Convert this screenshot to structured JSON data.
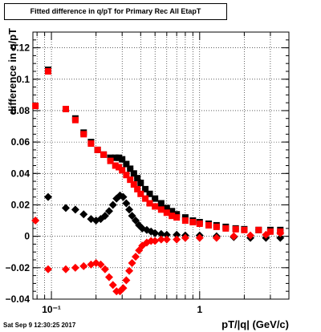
{
  "chart_data": {
    "type": "scatter",
    "title": "Fitted difference in q/pT for Primary Rec All EtapT",
    "xlabel": "pT/|q| (GeV/c)",
    "ylabel": "difference in q/pT",
    "xscale": "log",
    "xlim": [
      0.075,
      4.0
    ],
    "ylim": [
      -0.04,
      0.13
    ],
    "x_ticklabels": [
      "10⁻¹",
      "1"
    ],
    "y_ticklabels": [
      "−0.04",
      "−0.02",
      "0",
      "0.02",
      "0.04",
      "0.06",
      "0.08",
      "0.1",
      "0.12"
    ],
    "grid": true,
    "series": [
      {
        "color": "#000000",
        "marker": "square",
        "x": [
          0.095,
          0.125,
          0.145,
          0.165,
          0.185,
          0.205,
          0.225,
          0.25,
          0.27,
          0.285,
          0.3,
          0.32,
          0.34,
          0.36,
          0.38,
          0.4,
          0.43,
          0.46,
          0.5,
          0.55,
          0.6,
          0.65,
          0.7,
          0.8,
          0.9,
          1.0,
          1.15,
          1.3,
          1.5,
          1.75,
          2.0,
          2.5,
          3.0,
          3.5
        ],
        "y": [
          0.106,
          0.081,
          0.075,
          0.066,
          0.06,
          0.055,
          0.052,
          0.05,
          0.05,
          0.05,
          0.049,
          0.046,
          0.043,
          0.04,
          0.037,
          0.034,
          0.03,
          0.027,
          0.024,
          0.021,
          0.018,
          0.016,
          0.014,
          0.012,
          0.01,
          0.009,
          0.008,
          0.007,
          0.006,
          0.005,
          0.0045,
          0.004,
          0.004,
          0.004
        ]
      },
      {
        "color": "#ff0000",
        "marker": "square",
        "x": [
          0.078,
          0.095,
          0.125,
          0.145,
          0.165,
          0.185,
          0.205,
          0.225,
          0.25,
          0.27,
          0.285,
          0.3,
          0.32,
          0.34,
          0.36,
          0.38,
          0.4,
          0.43,
          0.46,
          0.5,
          0.55,
          0.6,
          0.65,
          0.7,
          0.8,
          0.9,
          1.0,
          1.15,
          1.3,
          1.5,
          1.75,
          2.0,
          2.5,
          3.0,
          3.5
        ],
        "y": [
          0.083,
          0.105,
          0.081,
          0.074,
          0.065,
          0.059,
          0.055,
          0.052,
          0.048,
          0.045,
          0.044,
          0.042,
          0.039,
          0.036,
          0.033,
          0.03,
          0.027,
          0.024,
          0.021,
          0.019,
          0.017,
          0.015,
          0.013,
          0.012,
          0.01,
          0.009,
          0.008,
          0.007,
          0.006,
          0.005,
          0.0045,
          0.004,
          0.004,
          0.003,
          0.003
        ]
      },
      {
        "color": "#000000",
        "marker": "diamond",
        "x": [
          0.095,
          0.125,
          0.145,
          0.165,
          0.185,
          0.2,
          0.215,
          0.23,
          0.245,
          0.26,
          0.275,
          0.29,
          0.305,
          0.32,
          0.335,
          0.35,
          0.37,
          0.39,
          0.41,
          0.44,
          0.47,
          0.5,
          0.55,
          0.6,
          0.7,
          0.8,
          1.0,
          1.3,
          1.7,
          2.2,
          2.8,
          3.5
        ],
        "y": [
          0.025,
          0.018,
          0.017,
          0.014,
          0.011,
          0.01,
          0.011,
          0.013,
          0.016,
          0.02,
          0.024,
          0.026,
          0.025,
          0.021,
          0.017,
          0.013,
          0.01,
          0.007,
          0.005,
          0.004,
          0.003,
          0.002,
          0.0015,
          0.001,
          0.001,
          0.0005,
          0.0005,
          0.0,
          -0.0005,
          -0.001,
          -0.001,
          -0.001
        ]
      },
      {
        "color": "#ff0000",
        "marker": "diamond",
        "x": [
          0.078,
          0.095,
          0.125,
          0.145,
          0.165,
          0.185,
          0.2,
          0.215,
          0.23,
          0.245,
          0.26,
          0.275,
          0.29,
          0.305,
          0.32,
          0.335,
          0.35,
          0.37,
          0.39,
          0.41,
          0.44,
          0.47,
          0.5,
          0.55,
          0.6,
          0.7,
          0.8,
          1.0,
          1.3,
          1.7,
          2.2,
          2.8,
          3.5
        ],
        "y": [
          0.01,
          -0.021,
          -0.021,
          -0.02,
          -0.019,
          -0.018,
          -0.017,
          -0.018,
          -0.021,
          -0.026,
          -0.031,
          -0.035,
          -0.035,
          -0.033,
          -0.028,
          -0.022,
          -0.017,
          -0.013,
          -0.009,
          -0.006,
          -0.004,
          -0.003,
          -0.003,
          -0.002,
          -0.002,
          -0.002,
          -0.001,
          -0.001,
          -0.001,
          0.0,
          0.0005,
          0.001,
          0.002
        ]
      }
    ]
  },
  "datestamp": "Sat Sep  9 12:30:25 2017"
}
